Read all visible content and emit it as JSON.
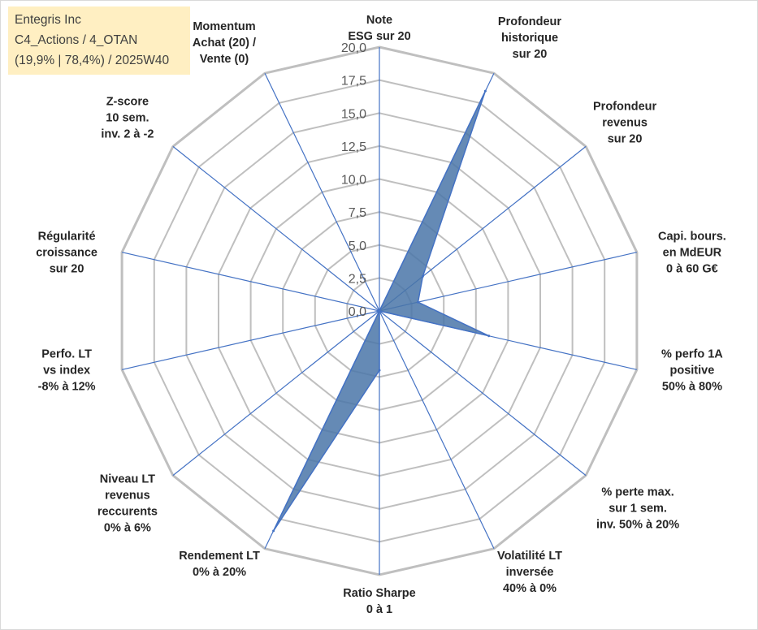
{
  "info": {
    "line1": "Entegris Inc",
    "line2": "C4_Actions / 4_OTAN",
    "line3": "(19,9% | 78,4%) / 2025W40"
  },
  "chart_data": {
    "type": "radar",
    "rmin": 0,
    "rmax": 20,
    "tick_step": 2.5,
    "tick_labels": [
      "0,0",
      "2,5",
      "5,0",
      "7,5",
      "10,0",
      "12,5",
      "15,0",
      "17,5",
      "20,0"
    ],
    "grid": true,
    "categories": [
      "Note\nESG sur 20",
      "Profondeur\nhistorique\nsur 20",
      "Profondeur\nrevenus\nsur 20",
      "Capi. bours.\nen MdEUR\n0 à 60 G€",
      "% perfo 1A\npositive\n50% à 80%",
      "% perte max.\nsur 1 sem.\ninv. 50% à 20%",
      "Volatilité LT\ninversée\n40% à 0%",
      "Ratio Sharpe\n0 à 1",
      "Rendement LT\n0% à 20%",
      "Niveau LT\nrevenus\nreccurents\n0% à 6%",
      "Perfo. LT\nvs index\n-8% à 12%",
      "Régularité\ncroissance\nsur 20",
      "Z-score\n10 sem.\ninv. 2 à -2",
      "Momentum\nAchat (20) /\nVente (0)"
    ],
    "series": [
      {
        "values": [
          0,
          18.5,
          4.2,
          3.0,
          8.5,
          0,
          0,
          4.5,
          18.5,
          0,
          0,
          0,
          0,
          0
        ]
      }
    ],
    "colors": {
      "fill": "#4a76a8",
      "stroke": "#4472c4",
      "spoke": "#4472c4",
      "grid": "#bfbfbf",
      "outer": "#bfbfbf"
    }
  }
}
